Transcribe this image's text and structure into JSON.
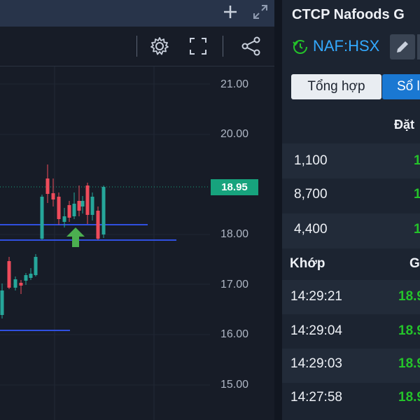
{
  "chart": {
    "price_ticks": [
      "21.00",
      "20.00",
      "18.00",
      "17.00",
      "16.00",
      "15.00"
    ],
    "last_price": "18.95",
    "up_color": "#26a69a",
    "down_color": "#ef4b5b",
    "line_color": "#3050e0",
    "signal_color": "#4caf50"
  },
  "toolbar": {
    "icons": [
      "plus-icon",
      "expand-icon",
      "gear-icon",
      "fullscreen-icon",
      "share-icon"
    ]
  },
  "stock": {
    "title": "CTCP Nafoods G",
    "ticker": "NAF:HSX",
    "tabs": [
      "Tổng hợp",
      "Sổ l"
    ]
  },
  "orderbook": {
    "header": "Đặt",
    "rows": [
      {
        "volume": "1,100",
        "flag": "1"
      },
      {
        "volume": "8,700",
        "flag": "1"
      },
      {
        "volume": "4,400",
        "flag": "1"
      }
    ]
  },
  "matched": {
    "header_time": "Khớp",
    "header_price": "G",
    "rows": [
      {
        "time": "14:29:21",
        "price": "18.9"
      },
      {
        "time": "14:29:04",
        "price": "18.9"
      },
      {
        "time": "14:29:03",
        "price": "18.9"
      },
      {
        "time": "14:27:58",
        "price": "18.9"
      }
    ]
  }
}
